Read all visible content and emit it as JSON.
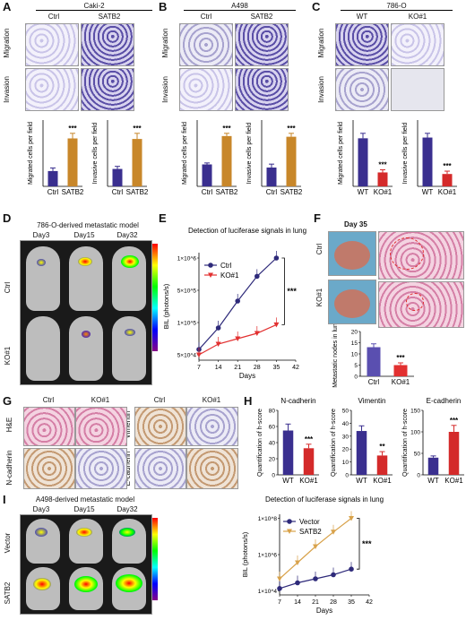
{
  "panels": {
    "A": {
      "letter": "A",
      "cell": "Caki-2",
      "cols": [
        "Ctrl",
        "SATB2"
      ],
      "rows": [
        "Migration",
        "Invasion"
      ]
    },
    "B": {
      "letter": "B",
      "cell": "A498",
      "cols": [
        "Ctrl",
        "SATB2"
      ],
      "rows": [
        "Migration",
        "Invasion"
      ]
    },
    "C": {
      "letter": "C",
      "cell": "786-O",
      "cols": [
        "WT",
        "KO#1"
      ],
      "rows": [
        "Migration",
        "Invasion"
      ]
    },
    "D": {
      "letter": "D",
      "title": "786-O-derived metastatic model",
      "days": [
        "Day3",
        "Day15",
        "Day32"
      ],
      "rows": [
        "Ctrl",
        "KO#1"
      ]
    },
    "E": {
      "letter": "E"
    },
    "F": {
      "letter": "F",
      "day": "Day 35",
      "rows": [
        "Ctrl",
        "KO#1"
      ]
    },
    "G": {
      "letter": "G",
      "cols": [
        "Ctrl",
        "KO#1",
        "Ctrl",
        "KO#1"
      ],
      "rows_left": [
        "H&E",
        "N-cadherin"
      ],
      "rows_right": [
        "Vimentin",
        "E-cadherin"
      ]
    },
    "H": {
      "letter": "H"
    },
    "I": {
      "letter": "I",
      "title": "A498-derived metastatic model",
      "days": [
        "Day3",
        "Day15",
        "Day32"
      ],
      "rows": [
        "Vector",
        "SATB2"
      ]
    }
  },
  "chart_data": [
    {
      "id": "A1",
      "type": "bar",
      "categories": [
        "Ctrl",
        "SATB2"
      ],
      "values": [
        75,
        235
      ],
      "errors": [
        15,
        25
      ],
      "colors": [
        "#3a2f8f",
        "#c8872a"
      ],
      "ylabel": "Migrated cells per field",
      "sig": "***"
    },
    {
      "id": "A2",
      "type": "bar",
      "categories": [
        "Ctrl",
        "SATB2"
      ],
      "values": [
        68,
        185
      ],
      "errors": [
        10,
        22
      ],
      "colors": [
        "#3a2f8f",
        "#c8872a"
      ],
      "ylabel": "Invasive cells per field",
      "sig": "***"
    },
    {
      "id": "B1",
      "type": "bar",
      "categories": [
        "Ctrl",
        "SATB2"
      ],
      "values": [
        120,
        275
      ],
      "errors": [
        8,
        15
      ],
      "colors": [
        "#3a2f8f",
        "#c8872a"
      ],
      "ylabel": "Migrated cells per field",
      "sig": "***"
    },
    {
      "id": "B2",
      "type": "bar",
      "categories": [
        "Ctrl",
        "SATB2"
      ],
      "values": [
        55,
        145
      ],
      "errors": [
        10,
        10
      ],
      "colors": [
        "#3a2f8f",
        "#c8872a"
      ],
      "ylabel": "Invasive cells per field",
      "sig": "***"
    },
    {
      "id": "C1",
      "type": "bar",
      "categories": [
        "WT",
        "KO#1"
      ],
      "values": [
        145,
        42
      ],
      "errors": [
        15,
        8
      ],
      "colors": [
        "#3a2f8f",
        "#d42a2a"
      ],
      "ylabel": "Migrated cells per field",
      "sig": "***"
    },
    {
      "id": "C2",
      "type": "bar",
      "categories": [
        "WT",
        "KO#1"
      ],
      "values": [
        138,
        35
      ],
      "errors": [
        12,
        8
      ],
      "colors": [
        "#3a2f8f",
        "#d42a2a"
      ],
      "ylabel": "Invasive cells per field",
      "sig": "***"
    },
    {
      "id": "E",
      "type": "line",
      "title": "Detection of luciferase signals in lung",
      "xlabel": "Days",
      "ylabel": "BIL (photons/s)",
      "x": [
        7,
        14,
        21,
        28,
        35
      ],
      "xticks": [
        "7",
        "14",
        "21",
        "28",
        "35",
        "42"
      ],
      "yticks": [
        "5×10^4",
        "1×10^5",
        "5×10^5",
        "1×10^6"
      ],
      "series": [
        {
          "name": "Ctrl",
          "color": "#2e2a7a",
          "marker": "circle",
          "values": [
            0.1,
            0.3,
            0.55,
            0.78,
            0.95
          ]
        },
        {
          "name": "KO#1",
          "color": "#e23030",
          "marker": "triangle",
          "values": [
            0.05,
            0.15,
            0.2,
            0.25,
            0.33
          ]
        }
      ],
      "sig": "***"
    },
    {
      "id": "F",
      "type": "bar",
      "categories": [
        "Ctrl",
        "KO#1"
      ],
      "values": [
        13,
        5
      ],
      "errors": [
        1.5,
        1
      ],
      "colors": [
        "#5a4fb0",
        "#e23030"
      ],
      "ylabel": "Metastatic nodes in lung",
      "ylim": [
        0,
        20
      ],
      "yticks": [
        "0",
        "5",
        "10",
        "15",
        "20"
      ],
      "sig": "***"
    },
    {
      "id": "H1",
      "type": "bar",
      "title": "N-cadherin",
      "categories": [
        "WT",
        "KO#1"
      ],
      "values": [
        55,
        33
      ],
      "errors": [
        8,
        5
      ],
      "colors": [
        "#3a2f8f",
        "#d42a2a"
      ],
      "ylabel": "Quantification of h-score",
      "ylim": [
        0,
        80
      ],
      "yticks": [
        "0",
        "20",
        "40",
        "60",
        "80"
      ],
      "sig": "***"
    },
    {
      "id": "H2",
      "type": "bar",
      "title": "Vimentin",
      "categories": [
        "WT",
        "KO#1"
      ],
      "values": [
        34,
        15
      ],
      "errors": [
        4,
        3
      ],
      "colors": [
        "#3a2f8f",
        "#d42a2a"
      ],
      "ylabel": "Quantification of h-score",
      "ylim": [
        0,
        50
      ],
      "yticks": [
        "0",
        "10",
        "20",
        "30",
        "40",
        "50"
      ],
      "sig": "**"
    },
    {
      "id": "H3",
      "type": "bar",
      "title": "E-cadherin",
      "categories": [
        "WT",
        "KO#1"
      ],
      "values": [
        40,
        100
      ],
      "errors": [
        4,
        15
      ],
      "colors": [
        "#3a2f8f",
        "#d42a2a"
      ],
      "ylabel": "Quantification of h-score",
      "ylim": [
        0,
        150
      ],
      "yticks": [
        "0",
        "50",
        "100",
        "150"
      ],
      "sig": "***"
    },
    {
      "id": "I",
      "type": "line",
      "title": "Detection of luciferase signals in lung",
      "xlabel": "Days",
      "ylabel": "BIL (photons/s)",
      "x": [
        7,
        14,
        21,
        28,
        35
      ],
      "xticks": [
        "7",
        "14",
        "21",
        "28",
        "35",
        "42"
      ],
      "yticks": [
        "1×10^4",
        "1×10^6",
        "1×10^8"
      ],
      "series": [
        {
          "name": "Vector",
          "color": "#2e2a7a",
          "marker": "circle",
          "values": [
            0.08,
            0.15,
            0.2,
            0.25,
            0.32
          ]
        },
        {
          "name": "SATB2",
          "color": "#d8a24a",
          "marker": "triangle",
          "values": [
            0.2,
            0.4,
            0.6,
            0.78,
            0.95
          ]
        }
      ],
      "sig": "***"
    }
  ]
}
